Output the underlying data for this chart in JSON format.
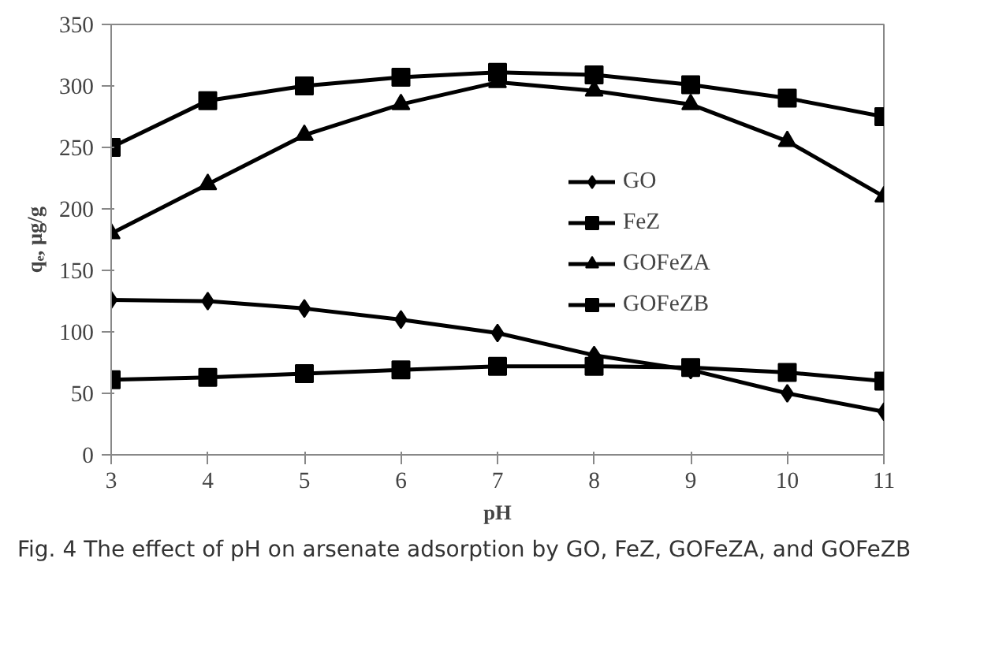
{
  "chart_data": {
    "type": "line",
    "xlabel": "pH",
    "ylabel": "qₑ, μg/g",
    "x": [
      3,
      4,
      5,
      6,
      7,
      8,
      9,
      10,
      11
    ],
    "xlim": [
      3,
      11
    ],
    "xticks": [
      3,
      4,
      5,
      6,
      7,
      8,
      9,
      10,
      11
    ],
    "ylim": [
      0,
      350
    ],
    "yticks": [
      0,
      50,
      100,
      150,
      200,
      250,
      300,
      350
    ],
    "grid": false,
    "legend": "right",
    "line_style": "solid",
    "series": [
      {
        "name": "GO",
        "color": "#000000",
        "marker": "diamond",
        "values": [
          126,
          125,
          119,
          110,
          99,
          81,
          69,
          50,
          35
        ]
      },
      {
        "name": "FeZ",
        "color": "#000000",
        "marker": "square",
        "values": [
          61,
          63,
          66,
          69,
          72,
          72,
          71,
          67,
          60
        ]
      },
      {
        "name": "GOFeZA",
        "color": "#000000",
        "marker": "triangle",
        "values": [
          180,
          220,
          260,
          285,
          303,
          296,
          285,
          255,
          210
        ]
      },
      {
        "name": "GOFeZB",
        "color": "#000000",
        "marker": "square",
        "values": [
          250,
          288,
          300,
          307,
          311,
          309,
          301,
          290,
          275
        ]
      }
    ],
    "annotations": [
      "Fig. 4 The effect of pH on arsenate adsorption by GO, FeZ, GOFeZA, and GOFeZB"
    ]
  }
}
